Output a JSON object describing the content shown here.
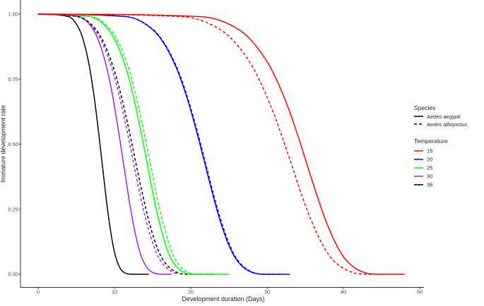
{
  "chart_data": {
    "type": "line",
    "xlabel": "Development duration (Days)",
    "ylabel": "Immature development rate",
    "xlim": [
      -3,
      50
    ],
    "ylim": [
      -0.05,
      1.05
    ],
    "x_ticks": [
      "0",
      "10",
      "20",
      "30",
      "40",
      "50"
    ],
    "y_ticks": [
      "0.00",
      "0.25",
      "0.50",
      "0.75",
      "1.00"
    ],
    "grid": false,
    "legend": {
      "placement": "right",
      "species_title": "Species",
      "species": [
        {
          "label": "Aedes aegypti",
          "dash": "solid"
        },
        {
          "label": "Aedes albopictus",
          "dash": "dashed"
        }
      ],
      "temperature_title": "Temperature",
      "temperatures": [
        {
          "label": "15",
          "color": "#ff0000"
        },
        {
          "label": "20",
          "color": "#0000ff"
        },
        {
          "label": "25",
          "color": "#00ff00"
        },
        {
          "label": "30",
          "color": "#a020f0"
        },
        {
          "label": "35",
          "color": "#000000"
        }
      ]
    },
    "series": [
      {
        "species": "Aedes aegypti",
        "temperature": "35",
        "color": "#000000",
        "dash": "solid",
        "x": [
          0,
          4.0,
          5.25,
          5.92,
          6.71,
          7.25,
          7.7,
          8.1,
          8.49,
          8.88,
          9.32,
          9.89,
          10.34,
          11.11,
          12.5,
          14.5
        ],
        "y": [
          1,
          0.99,
          0.95,
          0.9,
          0.8,
          0.7,
          0.6,
          0.5,
          0.4,
          0.3,
          0.2,
          0.1,
          0.05,
          0.01,
          0,
          0
        ]
      },
      {
        "species": "Aedes aegypti",
        "temperature": "30",
        "color": "#a020f0",
        "dash": "solid",
        "x": [
          0,
          5.34,
          7.0,
          7.89,
          8.94,
          9.67,
          10.26,
          10.8,
          11.32,
          11.84,
          12.43,
          13.19,
          13.78,
          14.81,
          16.5,
          17.5
        ],
        "y": [
          1,
          0.99,
          0.95,
          0.9,
          0.8,
          0.7,
          0.6,
          0.5,
          0.4,
          0.3,
          0.2,
          0.1,
          0.05,
          0.01,
          0,
          0
        ]
      },
      {
        "species": "Aedes albopictus",
        "temperature": "30",
        "color": "#a020f0",
        "dash": "dashed",
        "x": [
          0,
          5.15,
          7.13,
          8.23,
          9.56,
          10.51,
          11.29,
          12.0,
          12.68,
          13.4,
          14.2,
          15.25,
          16.08,
          17.53,
          18.5
        ],
        "y": [
          1,
          0.99,
          0.95,
          0.9,
          0.8,
          0.7,
          0.6,
          0.5,
          0.4,
          0.3,
          0.2,
          0.1,
          0.05,
          0.01,
          0
        ]
      },
      {
        "species": "Aedes albopictus",
        "temperature": "35",
        "color": "#000000",
        "dash": "dashed",
        "x": [
          0,
          5.28,
          7.31,
          8.44,
          9.8,
          10.77,
          11.57,
          12.3,
          13.0,
          13.74,
          14.55,
          15.63,
          16.48,
          17.97,
          19.5,
          23
        ],
        "y": [
          1,
          0.99,
          0.95,
          0.9,
          0.8,
          0.7,
          0.6,
          0.5,
          0.4,
          0.3,
          0.2,
          0.1,
          0.05,
          0.01,
          0,
          0
        ]
      },
      {
        "species": "Aedes aegypti",
        "temperature": "25",
        "color": "#00ff00",
        "dash": "solid",
        "x": [
          0,
          6.82,
          8.94,
          10.09,
          11.43,
          12.35,
          13.11,
          13.8,
          14.46,
          15.12,
          15.88,
          16.85,
          17.61,
          18.92,
          20.5,
          25
        ],
        "y": [
          1,
          0.99,
          0.95,
          0.9,
          0.8,
          0.7,
          0.6,
          0.5,
          0.4,
          0.3,
          0.2,
          0.1,
          0.05,
          0.01,
          0,
          0
        ]
      },
      {
        "species": "Aedes albopictus",
        "temperature": "25",
        "color": "#00ff00",
        "dash": "dashed",
        "x": [
          0,
          7.01,
          9.2,
          10.38,
          11.76,
          12.71,
          13.49,
          14.2,
          14.88,
          15.56,
          16.34,
          17.34,
          18.12,
          19.47,
          21,
          23
        ],
        "y": [
          1,
          0.99,
          0.95,
          0.9,
          0.8,
          0.7,
          0.6,
          0.5,
          0.4,
          0.3,
          0.2,
          0.1,
          0.05,
          0.01,
          0,
          0
        ]
      },
      {
        "species": "Aedes aegypti",
        "temperature": "20",
        "color": "#0000ff",
        "dash": "solid",
        "x": [
          0,
          11.58,
          14.61,
          16.2,
          18.02,
          19.27,
          20.29,
          21.2,
          22.07,
          22.94,
          23.91,
          25.16,
          26.14,
          27.79,
          30,
          33
        ],
        "y": [
          1,
          0.99,
          0.95,
          0.9,
          0.8,
          0.7,
          0.6,
          0.5,
          0.4,
          0.3,
          0.2,
          0.1,
          0.05,
          0.01,
          0,
          0
        ]
      },
      {
        "species": "Aedes albopictus",
        "temperature": "20",
        "color": "#0000ff",
        "dash": "dashed",
        "x": [
          0,
          11.63,
          14.68,
          16.27,
          18.11,
          19.36,
          20.38,
          21.3,
          22.17,
          23.05,
          24.03,
          25.28,
          26.26,
          27.92,
          30,
          32
        ],
        "y": [
          1,
          0.99,
          0.95,
          0.9,
          0.8,
          0.7,
          0.6,
          0.5,
          0.4,
          0.3,
          0.2,
          0.1,
          0.05,
          0.01,
          0,
          0
        ]
      },
      {
        "species": "Aedes aegypti",
        "temperature": "15",
        "color": "#ff0000",
        "dash": "solid",
        "x": [
          0,
          21.5,
          25.77,
          27.9,
          30.34,
          31.96,
          33.26,
          34.4,
          35.47,
          36.57,
          37.77,
          39.32,
          40.49,
          42.45,
          45,
          48
        ],
        "y": [
          1,
          0.99,
          0.95,
          0.9,
          0.8,
          0.7,
          0.6,
          0.5,
          0.4,
          0.3,
          0.2,
          0.1,
          0.05,
          0.01,
          0,
          0
        ]
      },
      {
        "species": "Aedes albopictus",
        "temperature": "15",
        "color": "#ff0000",
        "dash": "dashed",
        "x": [
          0,
          19.02,
          23.32,
          25.52,
          28.04,
          29.72,
          31.1,
          32.3,
          33.46,
          34.59,
          35.89,
          37.53,
          38.79,
          40.92,
          43,
          44
        ],
        "y": [
          1,
          0.99,
          0.95,
          0.9,
          0.8,
          0.7,
          0.6,
          0.5,
          0.4,
          0.3,
          0.2,
          0.1,
          0.05,
          0.01,
          0,
          0
        ]
      }
    ]
  }
}
